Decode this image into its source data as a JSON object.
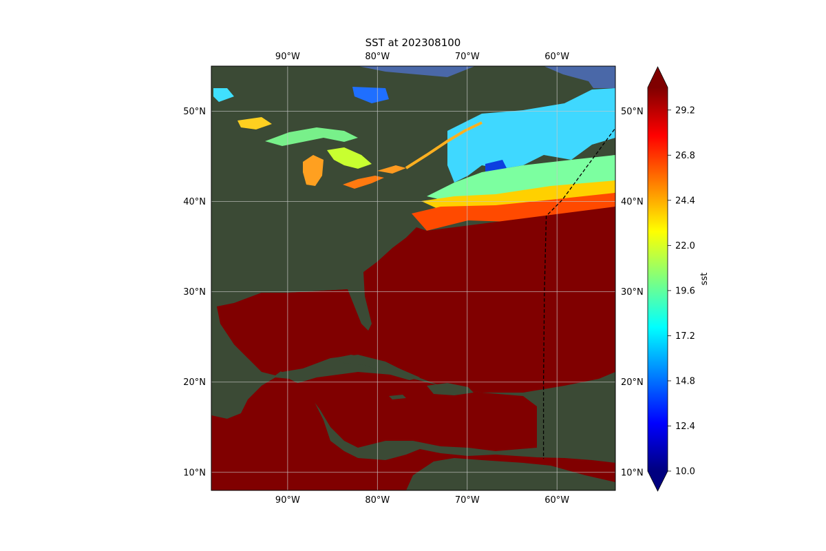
{
  "figure": {
    "title": "SST at 202308100"
  },
  "map": {
    "lon_range": [
      -98.5,
      -53.5
    ],
    "lat_range": [
      8,
      55
    ],
    "lon_ticks": [
      {
        "value": -90,
        "label": "90°W"
      },
      {
        "value": -80,
        "label": "80°W"
      },
      {
        "value": -70,
        "label": "70°W"
      },
      {
        "value": -60,
        "label": "60°W"
      }
    ],
    "lat_ticks": [
      {
        "value": 10,
        "label": "10°N"
      },
      {
        "value": 20,
        "label": "20°N"
      },
      {
        "value": 30,
        "label": "30°N"
      },
      {
        "value": 40,
        "label": "40°N"
      },
      {
        "value": 50,
        "label": "50°N"
      }
    ],
    "gridlines": true,
    "colors": {
      "land": "#3b4a35",
      "ocean_warm": "#800000",
      "grid": "#c8c8c8",
      "outline": "#000000"
    }
  },
  "colorbar": {
    "label": "sst",
    "range": [
      10.0,
      30.4
    ],
    "extend": "both",
    "ticks": [
      {
        "value": 10.0,
        "label": "10.0"
      },
      {
        "value": 12.4,
        "label": "12.4"
      },
      {
        "value": 14.8,
        "label": "14.8"
      },
      {
        "value": 17.2,
        "label": "17.2"
      },
      {
        "value": 19.6,
        "label": "19.6"
      },
      {
        "value": 22.0,
        "label": "22.0"
      },
      {
        "value": 24.4,
        "label": "24.4"
      },
      {
        "value": 26.8,
        "label": "26.8"
      },
      {
        "value": 29.2,
        "label": "29.2"
      }
    ],
    "colormap": "jet",
    "colormap_stops": [
      "#00007f",
      "#0000ff",
      "#007fff",
      "#00ffff",
      "#7fff7f",
      "#ffff00",
      "#ff7f00",
      "#ff0000",
      "#7f0000"
    ]
  },
  "track": {
    "style": "dashed",
    "color": "#000000",
    "points": [
      {
        "lon": -53.6,
        "lat": 48.0
      },
      {
        "lon": -59.4,
        "lat": 40.2
      },
      {
        "lon": -61.2,
        "lat": 38.4
      },
      {
        "lon": -61.4,
        "lat": 30.0
      },
      {
        "lon": -61.5,
        "lat": 20.0
      },
      {
        "lon": -61.5,
        "lat": 11.5
      }
    ]
  }
}
